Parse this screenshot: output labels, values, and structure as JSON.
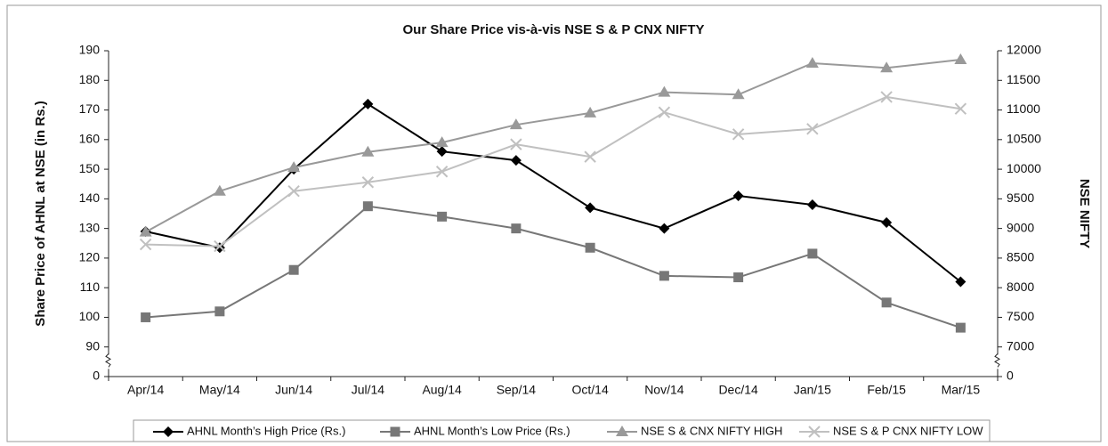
{
  "chart_data": {
    "type": "line",
    "title": "Our Share Price vis-à-vis NSE S & P CNX NIFTY",
    "ylabel": "Share Price of AHNL at NSE (in Rs.)",
    "y2label": "NSE NIFTY",
    "categories": [
      "Apr/14",
      "May/14",
      "Jun/14",
      "Jul/14",
      "Aug/14",
      "Sep/14",
      "Oct/14",
      "Nov/14",
      "Dec/14",
      "Jan/15",
      "Feb/15",
      "Mar/15"
    ],
    "ylim": [
      0,
      190
    ],
    "yticks": [
      0,
      90,
      100,
      110,
      120,
      130,
      140,
      150,
      160,
      170,
      180,
      190
    ],
    "y2lim": [
      0,
      12000
    ],
    "y2ticks": [
      0,
      7000,
      7500,
      8000,
      8500,
      9000,
      9500,
      10000,
      10500,
      11000,
      11500,
      12000
    ],
    "axis_break": true,
    "grid": false,
    "legend": "bottom",
    "series": [
      {
        "name": "AHNL Month’s High Price (Rs.)",
        "color": "#000000",
        "marker": "diamond",
        "values": [
          129,
          123.5,
          150,
          172,
          156,
          153,
          137,
          130,
          141,
          138,
          132,
          112
        ]
      },
      {
        "name": "AHNL Month’s Low Price (Rs.)",
        "color": "#777777",
        "marker": "square",
        "values": [
          100,
          102,
          116,
          137.5,
          134,
          130,
          123.5,
          114,
          113.5,
          121.5,
          105,
          96.5
        ]
      },
      {
        "name": "NSE S & CNX NIFTY HIGH",
        "color": "#999999",
        "marker": "triangle",
        "axis": "y2",
        "values": [
          8940,
          9630,
          10030,
          10290,
          10450,
          10750,
          10950,
          11300,
          11260,
          11790,
          11710,
          11850
        ]
      },
      {
        "name": "NSE S & P CNX NIFTY LOW",
        "color": "#c0c0c0",
        "marker": "x",
        "axis": "y2",
        "values": [
          8730,
          8700,
          9630,
          9780,
          9960,
          10420,
          10210,
          10960,
          10590,
          10680,
          11220,
          11020
        ]
      }
    ]
  }
}
